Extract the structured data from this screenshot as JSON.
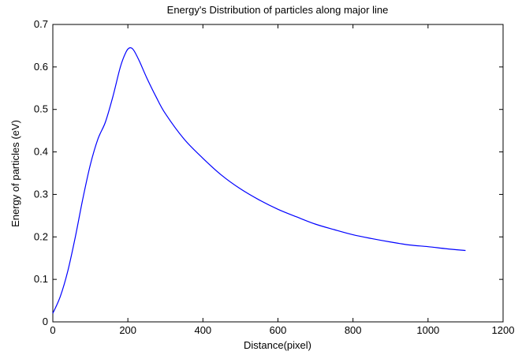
{
  "chart_data": {
    "type": "line",
    "title": "Energy's Distribution  of particles along  major line",
    "xlabel": "Distance(pixel)",
    "ylabel": "Energy of particles (eV)",
    "xlim": [
      0,
      1200
    ],
    "ylim": [
      0,
      0.7
    ],
    "xticks": [
      0,
      200,
      400,
      600,
      800,
      1000,
      1200
    ],
    "yticks": [
      0,
      0.1,
      0.2,
      0.3,
      0.4,
      0.5,
      0.6,
      0.7
    ],
    "xtick_labels": [
      "0",
      "200",
      "400",
      "600",
      "800",
      "1000",
      "1200"
    ],
    "ytick_labels": [
      "0",
      "0.1",
      "0.2",
      "0.3",
      "0.4",
      "0.5",
      "0.6",
      "0.7"
    ],
    "grid": false,
    "line_color": "#0000ff",
    "series": [
      {
        "x": [
          0,
          20,
          40,
          60,
          80,
          100,
          120,
          140,
          160,
          180,
          195,
          205,
          215,
          230,
          250,
          275,
          300,
          350,
          400,
          450,
          500,
          550,
          600,
          650,
          700,
          750,
          800,
          850,
          900,
          950,
          1000,
          1050,
          1100
        ],
        "y": [
          0.02,
          0.06,
          0.12,
          0.2,
          0.29,
          0.37,
          0.43,
          0.47,
          0.53,
          0.6,
          0.635,
          0.645,
          0.64,
          0.615,
          0.575,
          0.53,
          0.49,
          0.43,
          0.385,
          0.345,
          0.313,
          0.287,
          0.265,
          0.247,
          0.23,
          0.217,
          0.205,
          0.196,
          0.188,
          0.181,
          0.177,
          0.172,
          0.168
        ]
      }
    ]
  }
}
